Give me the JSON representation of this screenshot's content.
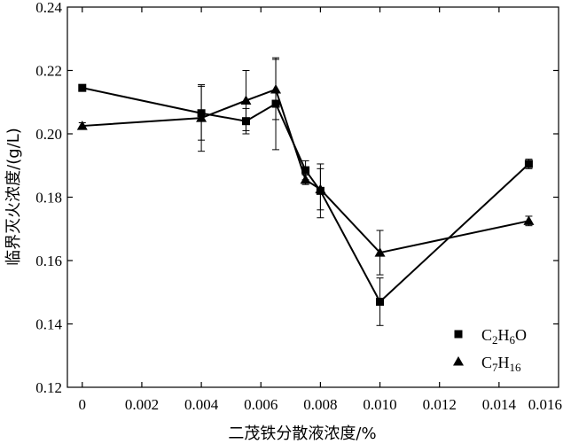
{
  "chart_data": {
    "type": "line",
    "title": "",
    "xlabel": "二茂铁分散液浓度/%",
    "ylabel": "临界灭火浓度/(g/L)",
    "xlim": [
      -0.0005,
      0.016
    ],
    "ylim": [
      0.12,
      0.24
    ],
    "x_ticks": [
      0,
      0.002,
      0.004,
      0.006,
      0.008,
      0.01,
      0.012,
      0.014,
      0.016
    ],
    "x_tick_labels": [
      "0",
      "0.002",
      "0.004",
      "0.006",
      "0.008",
      "0.010",
      "0.012",
      "0.014",
      "0.016"
    ],
    "y_ticks": [
      0.12,
      0.14,
      0.16,
      0.18,
      0.2,
      0.22,
      0.24
    ],
    "y_tick_labels": [
      "0.12",
      "0.14",
      "0.16",
      "0.18",
      "0.20",
      "0.22",
      "0.24"
    ],
    "grid": false,
    "legend_position": "bottom-right",
    "series": [
      {
        "name": "C2H6O",
        "marker": "square",
        "legend_parts": [
          {
            "t": "C",
            "sub": false
          },
          {
            "t": "2",
            "sub": true
          },
          {
            "t": "H",
            "sub": false
          },
          {
            "t": "6",
            "sub": true
          },
          {
            "t": "O",
            "sub": false
          }
        ],
        "x": [
          0,
          0.004,
          0.0055,
          0.0065,
          0.0075,
          0.008,
          0.01,
          0.015
        ],
        "y": [
          0.2145,
          0.2065,
          0.204,
          0.2095,
          0.1885,
          0.182,
          0.147,
          0.1905
        ],
        "err": [
          0.0,
          0.0085,
          0.004,
          0.0145,
          0.003,
          0.0085,
          0.0075,
          0.0015
        ]
      },
      {
        "name": "C7H16",
        "marker": "triangle",
        "legend_parts": [
          {
            "t": "C",
            "sub": false
          },
          {
            "t": "7",
            "sub": true
          },
          {
            "t": "H",
            "sub": false
          },
          {
            "t": "16",
            "sub": true
          }
        ],
        "x": [
          0,
          0.004,
          0.0055,
          0.0065,
          0.0075,
          0.008,
          0.01,
          0.015
        ],
        "y": [
          0.2025,
          0.205,
          0.2105,
          0.214,
          0.1855,
          0.1825,
          0.1625,
          0.1725
        ],
        "err": [
          0.001,
          0.0105,
          0.0095,
          0.0095,
          0.0015,
          0.0065,
          0.007,
          0.0015
        ]
      }
    ]
  }
}
